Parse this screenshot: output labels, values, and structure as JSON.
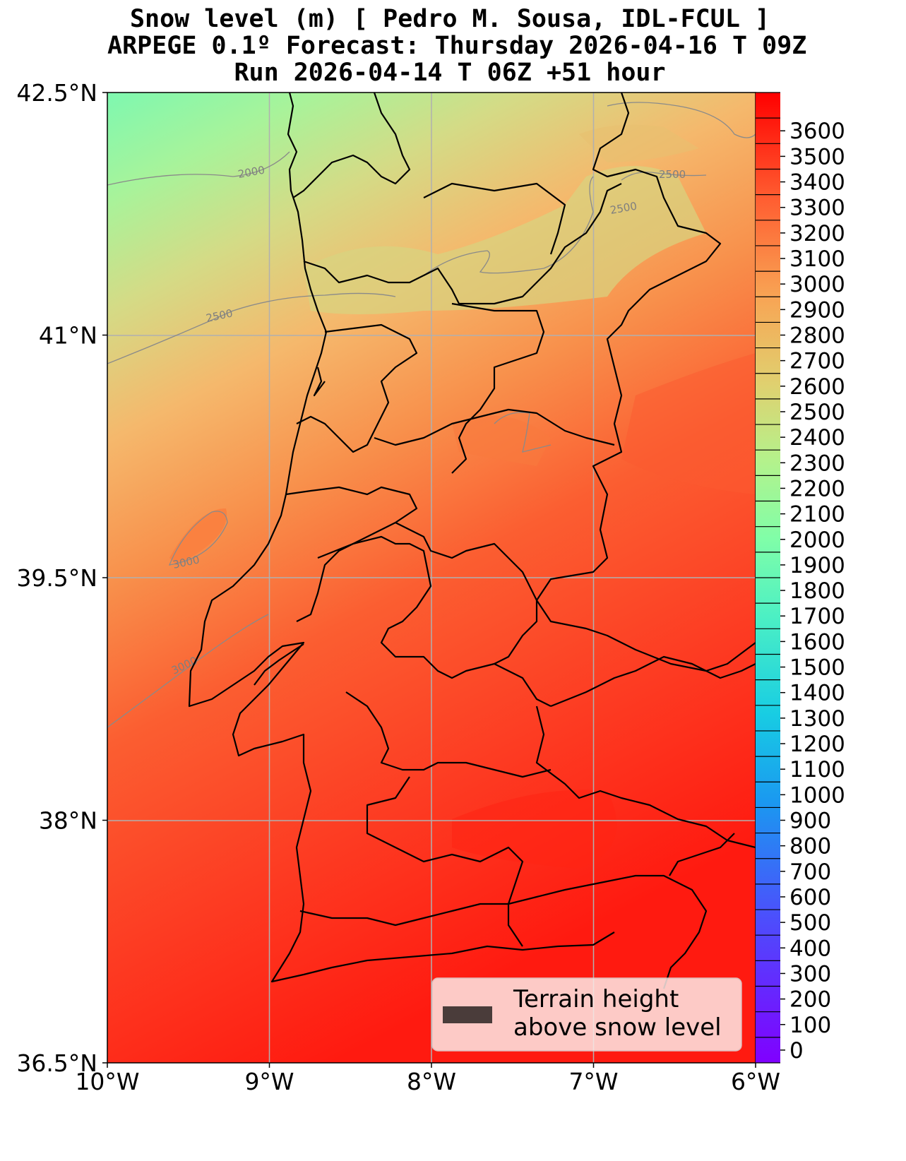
{
  "title": {
    "line1": "Snow level (m) [ Pedro M. Sousa, IDL-FCUL ]",
    "line2": "ARPEGE 0.1º Forecast: Thursday 2026-04-16 T 09Z",
    "line3": "Run 2026-04-14 T 06Z +51 hour"
  },
  "map": {
    "lon_range": [
      -10,
      -6
    ],
    "lat_range": [
      36.5,
      42.5
    ],
    "lon_ticks": [
      "10°W",
      "9°W",
      "8°W",
      "7°W",
      "6°W"
    ],
    "lat_ticks": [
      "42.5°N",
      "41°N",
      "39.5°N",
      "38°N",
      "36.5°N"
    ],
    "grid": true,
    "contour_labels": [
      "2000",
      "2500",
      "2500",
      "2500",
      "3000",
      "3000"
    ]
  },
  "colorbar": {
    "range": [
      -50,
      3750
    ],
    "step": 100,
    "labels": [
      "3600",
      "3500",
      "3400",
      "3300",
      "3200",
      "3100",
      "3000",
      "2900",
      "2800",
      "2700",
      "2600",
      "2500",
      "2400",
      "2300",
      "2200",
      "2100",
      "2000",
      "1900",
      "1800",
      "1700",
      "1600",
      "1500",
      "1400",
      "1300",
      "1200",
      "1100",
      "1000",
      "900",
      "800",
      "700",
      "600",
      "500",
      "400",
      "300",
      "200",
      "100",
      "0"
    ]
  },
  "legend": {
    "line1": "Terrain height",
    "line2": "above snow level",
    "swatch_color": "#4a3c3a",
    "placement": "lower-right"
  }
}
